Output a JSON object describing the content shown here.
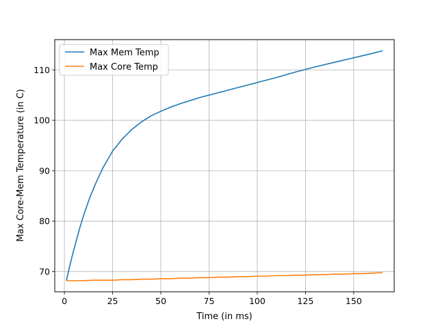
{
  "chart_data": {
    "type": "line",
    "title": "",
    "xlabel": "Time (in ms)",
    "ylabel": "Max Core-Mem Temperature (in C)",
    "xlim": [
      -5,
      171
    ],
    "ylim": [
      66,
      116
    ],
    "xticks": [
      0,
      25,
      50,
      75,
      100,
      125,
      150
    ],
    "yticks": [
      70,
      80,
      90,
      100,
      110
    ],
    "grid": true,
    "legend_position": "top-left",
    "series": [
      {
        "name": "Max Mem Temp",
        "color": "#1f77b4",
        "x": [
          1,
          3,
          5,
          8,
          10,
          13,
          16,
          20,
          25,
          30,
          35,
          40,
          45,
          50,
          55,
          60,
          65,
          70,
          75,
          80,
          90,
          100,
          110,
          120,
          130,
          140,
          150,
          160,
          165
        ],
        "y": [
          68.2,
          71.5,
          74.5,
          78.7,
          81.2,
          84.5,
          87.3,
          90.6,
          93.9,
          96.3,
          98.2,
          99.7,
          100.9,
          101.8,
          102.6,
          103.3,
          103.9,
          104.5,
          105.0,
          105.5,
          106.5,
          107.5,
          108.5,
          109.6,
          110.6,
          111.5,
          112.4,
          113.3,
          113.8
        ]
      },
      {
        "name": "Max Core Temp",
        "color": "#ff7f0e",
        "x": [
          1,
          5,
          10,
          15,
          20,
          25,
          30,
          35,
          40,
          45,
          50,
          55,
          60,
          65,
          70,
          75,
          80,
          85,
          90,
          95,
          100,
          105,
          110,
          115,
          120,
          125,
          130,
          135,
          140,
          145,
          150,
          155,
          160,
          165
        ],
        "y": [
          68.2,
          68.2,
          68.2,
          68.3,
          68.3,
          68.3,
          68.4,
          68.4,
          68.5,
          68.5,
          68.6,
          68.6,
          68.7,
          68.7,
          68.8,
          68.8,
          68.9,
          68.9,
          69.0,
          69.0,
          69.1,
          69.1,
          69.2,
          69.2,
          69.3,
          69.3,
          69.4,
          69.4,
          69.5,
          69.5,
          69.6,
          69.6,
          69.7,
          69.8
        ]
      }
    ]
  }
}
